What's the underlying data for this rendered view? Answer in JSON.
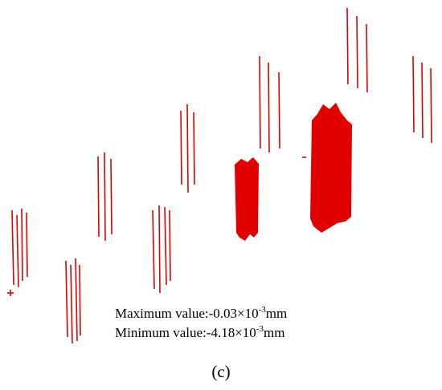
{
  "figure": {
    "maximum": {
      "prefix": "Maximum value:-0.03×10",
      "exponent": "-3",
      "unit": "mm"
    },
    "minimum": {
      "prefix": "Minimum value:-4.18×10",
      "exponent": "-3",
      "unit": "mm"
    },
    "caption": "(c)"
  }
}
